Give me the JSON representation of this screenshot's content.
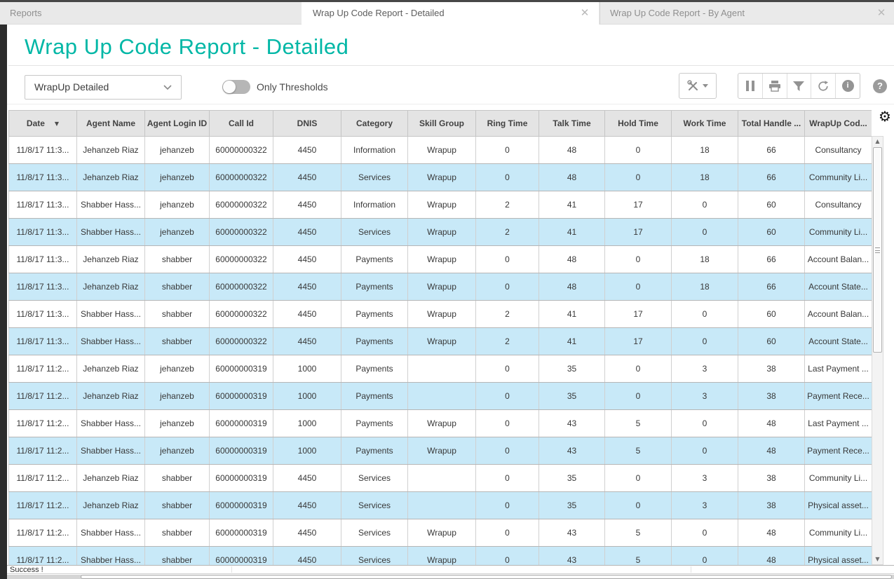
{
  "window": {
    "tabs": [
      {
        "label": "Reports",
        "active": false,
        "closable": false
      },
      {
        "label": "Wrap Up Code Report - Detailed",
        "active": true,
        "closable": true
      },
      {
        "label": "Wrap Up Code Report - By Agent",
        "active": false,
        "closable": true
      }
    ],
    "close_glyph": "✕"
  },
  "header": {
    "title": "Wrap Up Code Report - Detailed"
  },
  "controls": {
    "view_selector": {
      "value": "WrapUp Detailed"
    },
    "threshold_toggle": {
      "label": "Only Thresholds",
      "state": "off"
    }
  },
  "toolbar": {
    "icons": [
      "tools-dropdown",
      "pause",
      "print",
      "filter",
      "refresh",
      "info",
      "help"
    ],
    "help_glyph": "?",
    "info_glyph": "i"
  },
  "table": {
    "sort": {
      "column": "Date",
      "direction": "desc",
      "glyph": "▼"
    },
    "columns": [
      "Date",
      "Agent Name",
      "Agent Login ID",
      "Call Id",
      "DNIS",
      "Category",
      "Skill Group",
      "Ring Time",
      "Talk Time",
      "Hold Time",
      "Work Time",
      "Total Handle ...",
      "WrapUp Cod..."
    ],
    "rows": [
      [
        "11/8/17 11:3...",
        "Jehanzeb Riaz",
        "jehanzeb",
        "60000000322",
        "4450",
        "Information",
        "Wrapup",
        "0",
        "48",
        "0",
        "18",
        "66",
        "Consultancy"
      ],
      [
        "11/8/17 11:3...",
        "Jehanzeb Riaz",
        "jehanzeb",
        "60000000322",
        "4450",
        "Services",
        "Wrapup",
        "0",
        "48",
        "0",
        "18",
        "66",
        "Community Li..."
      ],
      [
        "11/8/17 11:3...",
        "Shabber Hass...",
        "jehanzeb",
        "60000000322",
        "4450",
        "Information",
        "Wrapup",
        "2",
        "41",
        "17",
        "0",
        "60",
        "Consultancy"
      ],
      [
        "11/8/17 11:3...",
        "Shabber Hass...",
        "jehanzeb",
        "60000000322",
        "4450",
        "Services",
        "Wrapup",
        "2",
        "41",
        "17",
        "0",
        "60",
        "Community Li..."
      ],
      [
        "11/8/17 11:3...",
        "Jehanzeb Riaz",
        "shabber",
        "60000000322",
        "4450",
        "Payments",
        "Wrapup",
        "0",
        "48",
        "0",
        "18",
        "66",
        "Account Balan..."
      ],
      [
        "11/8/17 11:3...",
        "Jehanzeb Riaz",
        "shabber",
        "60000000322",
        "4450",
        "Payments",
        "Wrapup",
        "0",
        "48",
        "0",
        "18",
        "66",
        "Account State..."
      ],
      [
        "11/8/17 11:3...",
        "Shabber Hass...",
        "shabber",
        "60000000322",
        "4450",
        "Payments",
        "Wrapup",
        "2",
        "41",
        "17",
        "0",
        "60",
        "Account Balan..."
      ],
      [
        "11/8/17 11:3...",
        "Shabber Hass...",
        "shabber",
        "60000000322",
        "4450",
        "Payments",
        "Wrapup",
        "2",
        "41",
        "17",
        "0",
        "60",
        "Account State..."
      ],
      [
        "11/8/17 11:2...",
        "Jehanzeb Riaz",
        "jehanzeb",
        "60000000319",
        "1000",
        "Payments",
        "",
        "0",
        "35",
        "0",
        "3",
        "38",
        "Last Payment ..."
      ],
      [
        "11/8/17 11:2...",
        "Jehanzeb Riaz",
        "jehanzeb",
        "60000000319",
        "1000",
        "Payments",
        "",
        "0",
        "35",
        "0",
        "3",
        "38",
        "Payment Rece..."
      ],
      [
        "11/8/17 11:2...",
        "Shabber Hass...",
        "jehanzeb",
        "60000000319",
        "1000",
        "Payments",
        "Wrapup",
        "0",
        "43",
        "5",
        "0",
        "48",
        "Last Payment ..."
      ],
      [
        "11/8/17 11:2...",
        "Shabber Hass...",
        "jehanzeb",
        "60000000319",
        "1000",
        "Payments",
        "Wrapup",
        "0",
        "43",
        "5",
        "0",
        "48",
        "Payment Rece..."
      ],
      [
        "11/8/17 11:2...",
        "Jehanzeb Riaz",
        "shabber",
        "60000000319",
        "4450",
        "Services",
        "",
        "0",
        "35",
        "0",
        "3",
        "38",
        "Community Li..."
      ],
      [
        "11/8/17 11:2...",
        "Jehanzeb Riaz",
        "shabber",
        "60000000319",
        "4450",
        "Services",
        "",
        "0",
        "35",
        "0",
        "3",
        "38",
        "Physical asset..."
      ],
      [
        "11/8/17 11:2...",
        "Shabber Hass...",
        "shabber",
        "60000000319",
        "4450",
        "Services",
        "Wrapup",
        "0",
        "43",
        "5",
        "0",
        "48",
        "Community Li..."
      ],
      [
        "11/8/17 11:2...",
        "Shabber Hass...",
        "shabber",
        "60000000319",
        "4450",
        "Services",
        "Wrapup",
        "0",
        "43",
        "5",
        "0",
        "48",
        "Physical asset..."
      ]
    ]
  },
  "status_bar": {
    "message": "Success !"
  },
  "colors": {
    "accent_teal": "#00b7a6",
    "row_alt_blue": "#c8e9f8",
    "header_gray": "#e4e4e4",
    "tab_bar_gray": "#e9e9e9",
    "rail_dark": "#2c2c2c"
  }
}
